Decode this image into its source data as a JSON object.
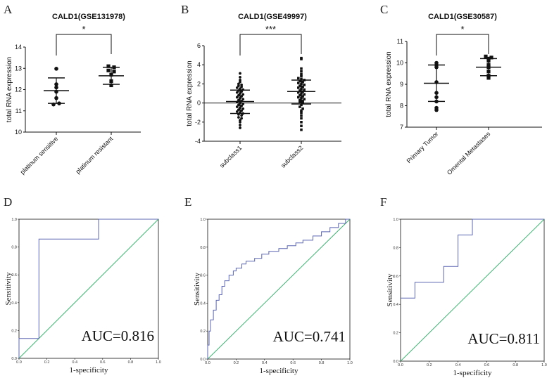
{
  "chart_data": [
    {
      "type": "scatter",
      "panel": "A",
      "title": "CALD1(GSE131978)",
      "ylabel": "total RNA expression",
      "ylim": [
        10,
        14
      ],
      "yticks": [
        "10",
        "11",
        "12",
        "13",
        "14"
      ],
      "categories": [
        "platinum sensitive",
        "platinum resistant"
      ],
      "significance": "*",
      "groups": [
        {
          "name": "platinum sensitive",
          "marker": "circle",
          "mean": 11.95,
          "sd_low": 11.35,
          "sd_high": 12.55,
          "values": [
            12.98,
            12.25,
            12.1,
            11.9,
            11.6,
            11.3,
            11.35
          ]
        },
        {
          "name": "platinum resistant",
          "marker": "square",
          "mean": 12.65,
          "sd_low": 12.25,
          "sd_high": 13.05,
          "values": [
            13.1,
            13.05,
            12.9,
            12.85,
            12.7,
            12.4,
            12.2
          ]
        }
      ]
    },
    {
      "type": "scatter",
      "panel": "B",
      "title": "CALD1(GSE49997)",
      "ylabel": "total RNA expression",
      "ylim": [
        -4,
        6
      ],
      "yticks": [
        "-4",
        "-2",
        "0",
        "2",
        "4",
        "6"
      ],
      "categories": [
        "subclass1",
        "subclass2"
      ],
      "significance": "***",
      "groups": [
        {
          "name": "subclass1",
          "marker": "circle",
          "mean": 0.15,
          "sd_low": -1.1,
          "sd_high": 1.35,
          "values": [
            3.1,
            2.7,
            2.4,
            2.2,
            2.0,
            1.9,
            1.8,
            1.7,
            1.6,
            1.5,
            1.4,
            1.3,
            1.2,
            1.1,
            1.0,
            0.9,
            0.8,
            0.7,
            0.6,
            0.5,
            0.4,
            0.3,
            0.2,
            0.1,
            0.0,
            -0.1,
            -0.2,
            -0.3,
            -0.4,
            -0.5,
            -0.6,
            -0.7,
            -0.8,
            -0.9,
            -1.0,
            -1.1,
            -1.2,
            -1.3,
            -1.5,
            -1.6,
            -1.8,
            -2.0,
            -2.3,
            -2.6
          ]
        },
        {
          "name": "subclass2",
          "marker": "square",
          "mean": 1.2,
          "sd_low": -0.1,
          "sd_high": 2.4,
          "values": [
            4.7,
            4.6,
            3.6,
            3.3,
            3.0,
            2.8,
            2.6,
            2.5,
            2.4,
            2.3,
            2.2,
            2.1,
            2.0,
            1.9,
            1.8,
            1.7,
            1.6,
            1.5,
            1.4,
            1.3,
            1.2,
            1.1,
            1.0,
            0.9,
            0.8,
            0.7,
            0.6,
            0.5,
            0.4,
            0.3,
            0.2,
            0.1,
            0.0,
            -0.2,
            -0.4,
            -0.6,
            -0.8,
            -1.0,
            -1.3,
            -1.6,
            -2.0,
            -2.4,
            -2.8
          ]
        }
      ]
    },
    {
      "type": "scatter",
      "panel": "C",
      "title": "CALD1(GSE30587)",
      "ylabel": "total RNA expression",
      "ylim": [
        7,
        11
      ],
      "yticks": [
        "7",
        "8",
        "9",
        "10",
        "11"
      ],
      "categories": [
        "Primary Tumor",
        "Omental Metastases"
      ],
      "significance": "*",
      "groups": [
        {
          "name": "Primary Tumor",
          "marker": "circle",
          "mean": 9.05,
          "sd_low": 8.2,
          "sd_high": 9.9,
          "values": [
            10.0,
            9.9,
            9.8,
            9.1,
            8.6,
            8.4,
            8.2,
            7.9,
            7.8
          ]
        },
        {
          "name": "Omental Metastases",
          "marker": "square",
          "mean": 9.8,
          "sd_low": 9.4,
          "sd_high": 10.2,
          "values": [
            10.3,
            10.25,
            10.2,
            10.1,
            9.9,
            9.8,
            9.6,
            9.4,
            9.3
          ]
        }
      ]
    },
    {
      "type": "line",
      "panel": "D",
      "xlabel": "1-specificity",
      "ylabel": "Sensitivity",
      "xlim": [
        0,
        1
      ],
      "ylim": [
        0,
        1
      ],
      "ticks": [
        "0.0",
        "0.2",
        "0.4",
        "0.6",
        "0.8",
        "1.0"
      ],
      "auc_label": "AUC=0.816",
      "roc": [
        [
          0,
          0
        ],
        [
          0,
          0.143
        ],
        [
          0.143,
          0.143
        ],
        [
          0.143,
          0.857
        ],
        [
          0.571,
          0.857
        ],
        [
          0.571,
          1
        ],
        [
          1,
          1
        ]
      ]
    },
    {
      "type": "line",
      "panel": "E",
      "xlabel": "1-specificity",
      "ylabel": "Sensitivity",
      "xlim": [
        0,
        1
      ],
      "ylim": [
        0,
        1
      ],
      "ticks": [
        "0.0",
        "0.2",
        "0.4",
        "0.6",
        "0.8",
        "1.0"
      ],
      "auc_label": "AUC=0.741",
      "roc": [
        [
          0,
          0
        ],
        [
          0,
          0.1
        ],
        [
          0.01,
          0.1
        ],
        [
          0.01,
          0.2
        ],
        [
          0.02,
          0.2
        ],
        [
          0.02,
          0.28
        ],
        [
          0.04,
          0.28
        ],
        [
          0.04,
          0.35
        ],
        [
          0.06,
          0.35
        ],
        [
          0.06,
          0.42
        ],
        [
          0.08,
          0.42
        ],
        [
          0.08,
          0.46
        ],
        [
          0.1,
          0.46
        ],
        [
          0.1,
          0.52
        ],
        [
          0.12,
          0.52
        ],
        [
          0.12,
          0.56
        ],
        [
          0.15,
          0.56
        ],
        [
          0.15,
          0.6
        ],
        [
          0.18,
          0.6
        ],
        [
          0.18,
          0.63
        ],
        [
          0.2,
          0.63
        ],
        [
          0.2,
          0.65
        ],
        [
          0.24,
          0.65
        ],
        [
          0.24,
          0.68
        ],
        [
          0.27,
          0.68
        ],
        [
          0.27,
          0.7
        ],
        [
          0.33,
          0.7
        ],
        [
          0.33,
          0.72
        ],
        [
          0.38,
          0.72
        ],
        [
          0.38,
          0.75
        ],
        [
          0.43,
          0.75
        ],
        [
          0.43,
          0.77
        ],
        [
          0.5,
          0.77
        ],
        [
          0.5,
          0.79
        ],
        [
          0.56,
          0.79
        ],
        [
          0.56,
          0.81
        ],
        [
          0.62,
          0.81
        ],
        [
          0.62,
          0.83
        ],
        [
          0.67,
          0.83
        ],
        [
          0.67,
          0.85
        ],
        [
          0.74,
          0.85
        ],
        [
          0.74,
          0.88
        ],
        [
          0.8,
          0.88
        ],
        [
          0.8,
          0.91
        ],
        [
          0.86,
          0.91
        ],
        [
          0.86,
          0.94
        ],
        [
          0.92,
          0.94
        ],
        [
          0.92,
          0.97
        ],
        [
          0.97,
          0.97
        ],
        [
          0.97,
          1.0
        ],
        [
          1,
          1
        ]
      ]
    },
    {
      "type": "line",
      "panel": "F",
      "xlabel": "1-specificity",
      "ylabel": "Sensitivity",
      "xlim": [
        0,
        1
      ],
      "ylim": [
        0,
        1
      ],
      "ticks": [
        "0.0",
        "0.2",
        "0.4",
        "0.6",
        "0.8",
        "1.0"
      ],
      "auc_label": "AUC=0.811",
      "roc": [
        [
          0,
          0.444
        ],
        [
          0.1,
          0.444
        ],
        [
          0.1,
          0.556
        ],
        [
          0.3,
          0.556
        ],
        [
          0.3,
          0.667
        ],
        [
          0.4,
          0.667
        ],
        [
          0.4,
          0.889
        ],
        [
          0.5,
          0.889
        ],
        [
          0.5,
          1
        ],
        [
          1,
          1
        ]
      ]
    }
  ],
  "colors": {
    "roc_curve": "#5a64b0",
    "reference": "#3cb371",
    "ink": "#111111"
  }
}
